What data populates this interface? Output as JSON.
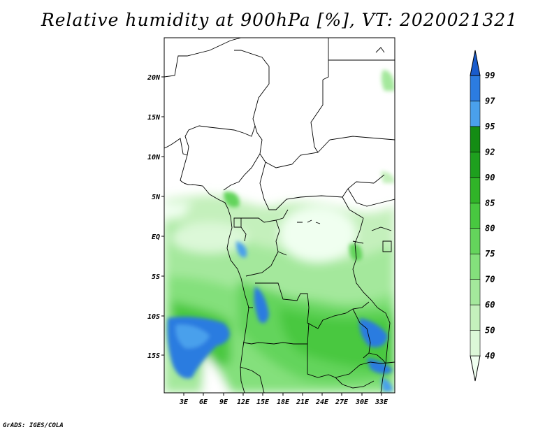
{
  "title": "Relative humidity at 900hPa [%], VT: 2020021321",
  "credit": "GrADS: IGES/COLA",
  "map": {
    "lon_labels": [
      "3E",
      "6E",
      "9E",
      "12E",
      "15E",
      "18E",
      "21E",
      "24E",
      "27E",
      "30E",
      "33E"
    ],
    "lat_labels": [
      "20N",
      "15N",
      "10N",
      "5N",
      "EQ",
      "5S",
      "10S",
      "15S"
    ]
  },
  "colorbar": {
    "levels": [
      "40",
      "50",
      "60",
      "70",
      "75",
      "80",
      "85",
      "90",
      "92",
      "95",
      "97",
      "99"
    ],
    "colors": [
      "#f0fff0",
      "#dcf8d8",
      "#c4f0bc",
      "#a4e89c",
      "#84e07c",
      "#64d45c",
      "#48c840",
      "#30b428",
      "#1ea01e",
      "#148c14",
      "#4aa0ec",
      "#2c7ce0",
      "#1a5ccc"
    ]
  }
}
